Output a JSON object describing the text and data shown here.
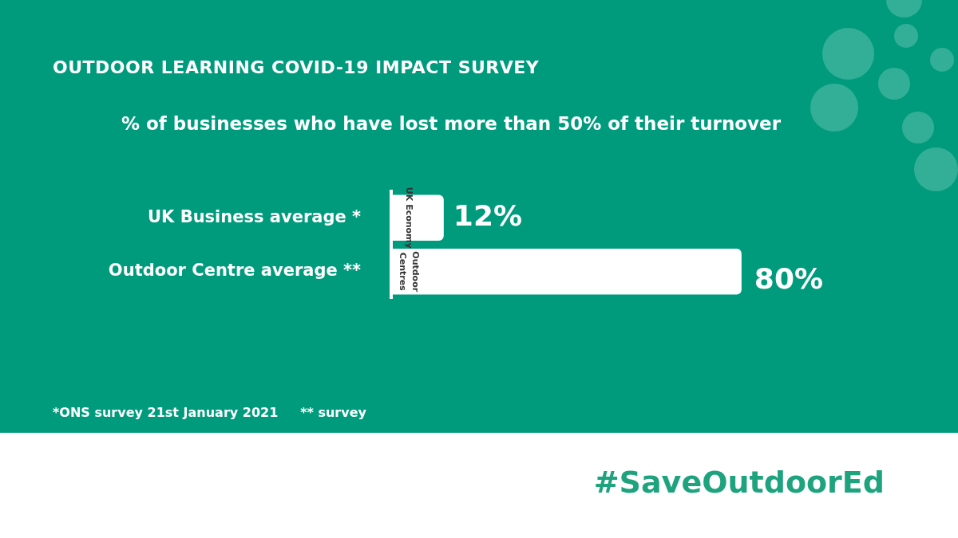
{
  "chart_data": {
    "type": "bar",
    "orientation": "horizontal",
    "title": "OUTDOOR LEARNING COVID-19 IMPACT SURVEY",
    "subtitle": "% of businesses who have lost more than 50% of their turnover",
    "categories": [
      "UK Business average *",
      "Outdoor Centre average **"
    ],
    "values": [
      12,
      80
    ],
    "color": "#ffffff",
    "value_labels": [
      "12%",
      "80%"
    ],
    "annotations": [
      {
        "text": "UK Economy",
        "x": 0,
        "y": "UK Business average *"
      },
      {
        "text": "Outdoor Centres",
        "x": 0,
        "y": "Outdoor Centre average **"
      },
      "*ONS survey 21st January 2021",
      "** survey",
      "#SaveOutdoorEd"
    ]
  }
}
